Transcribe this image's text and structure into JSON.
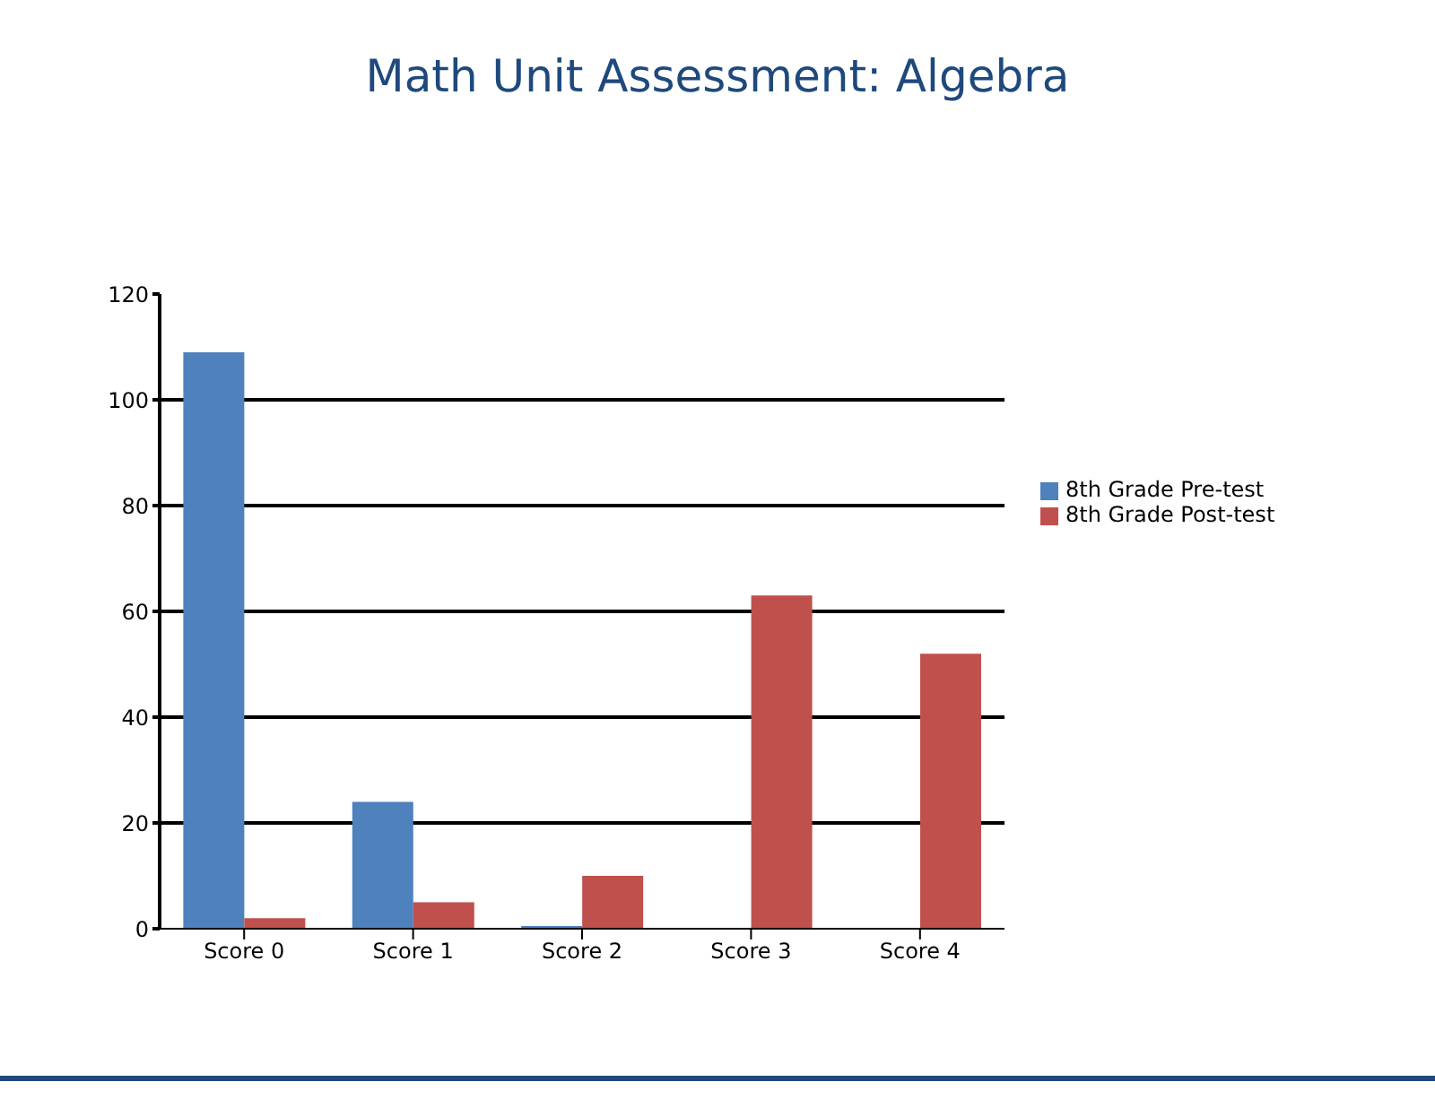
{
  "chart_data": {
    "type": "bar",
    "title": "Math Unit Assessment: Algebra",
    "categories": [
      "Score 0",
      "Score 1",
      "Score 2",
      "Score 3",
      "Score 4"
    ],
    "series": [
      {
        "name": "8th Grade Pre-test",
        "color": "#4f81bd",
        "values": [
          109,
          24,
          0.5,
          0,
          0
        ]
      },
      {
        "name": "8th Grade Post-test",
        "color": "#c0504d",
        "values": [
          2,
          5,
          10,
          63,
          52
        ]
      }
    ],
    "ylim": [
      0,
      120
    ],
    "yticks": [
      0,
      20,
      40,
      60,
      80,
      100,
      120
    ],
    "grid": "y",
    "legend": "right"
  }
}
